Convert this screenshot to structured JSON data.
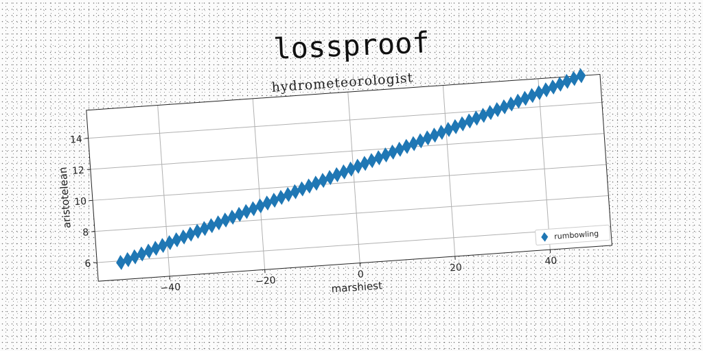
{
  "title": "lossproof",
  "chart_data": {
    "type": "scatter",
    "title": "hydrometeorologist",
    "xlabel": "marshiest",
    "ylabel": "aristotelean",
    "xlim": [
      -55,
      53
    ],
    "ylim": [
      4.8,
      15.8
    ],
    "xticks": [
      -40,
      -20,
      0,
      20,
      40
    ],
    "xtick_labels": [
      "−40",
      "−20",
      "0",
      "20",
      "40"
    ],
    "yticks": [
      6,
      8,
      10,
      12,
      14
    ],
    "ytick_labels": [
      "6",
      "8",
      "10",
      "12",
      "14"
    ],
    "grid": true,
    "legend_placement": "bottom-right",
    "marker": "diamond",
    "color": "#1f77b4",
    "series": [
      {
        "name": "rumbowling",
        "x_start": -50,
        "x_end": 49,
        "x_step": 1.5,
        "slope": 0.1,
        "intercept": 10.9
      }
    ]
  }
}
